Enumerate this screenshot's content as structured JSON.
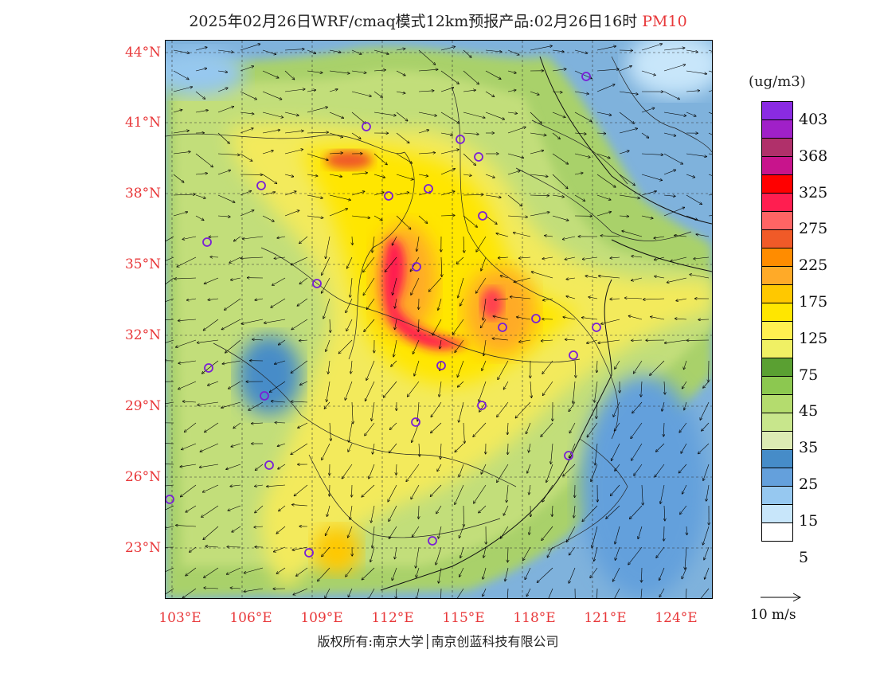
{
  "title": {
    "main": "2025年02月26日WRF/cmaq模式12km预报产品:02月26日16时",
    "pollutant": "PM10"
  },
  "map": {
    "lat_labels": [
      "44°N",
      "41°N",
      "38°N",
      "35°N",
      "32°N",
      "29°N",
      "26°N",
      "23°N"
    ],
    "lon_labels": [
      "103°E",
      "106°E",
      "109°E",
      "112°E",
      "115°E",
      "118°E",
      "121°E",
      "124°E"
    ],
    "colors": {
      "sea": "#7fb2dc",
      "land_low": "#a9d16a",
      "high": "#ffe44a"
    }
  },
  "legend": {
    "unit": "(ug/m3)",
    "labels": [
      "403",
      "368",
      "325",
      "275",
      "225",
      "175",
      "125",
      "75",
      "45",
      "35",
      "25",
      "15",
      "5"
    ],
    "colors": [
      "#8a2be2",
      "#a020c8",
      "#b0306a",
      "#c8148c",
      "#ff0000",
      "#ff1e50",
      "#ff6464",
      "#f05a28",
      "#ff8c00",
      "#ffaa28",
      "#ffc800",
      "#ffe600",
      "#fff050",
      "#f0f064",
      "#5aa032",
      "#8cc850",
      "#b4dc6e",
      "#c8e68c",
      "#dceab4",
      "#468cc8",
      "#64a0dc",
      "#96c8f0",
      "#c8e6fa",
      "#ffffff"
    ]
  },
  "wind": {
    "reference_label": "10 m/s"
  },
  "copyright": "版权所有:南京大学│南京创蓝科技有限公司"
}
